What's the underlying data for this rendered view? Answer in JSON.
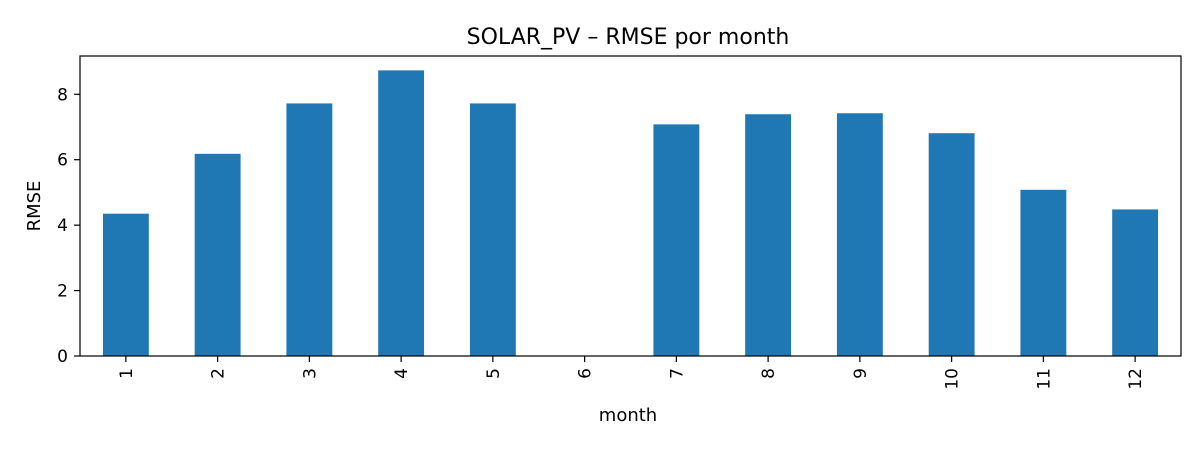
{
  "chart_data": {
    "type": "bar",
    "title": "SOLAR_PV – RMSE por month",
    "xlabel": "month",
    "ylabel": "RMSE",
    "categories": [
      "1",
      "2",
      "3",
      "4",
      "5",
      "6",
      "7",
      "8",
      "9",
      "10",
      "11",
      "12"
    ],
    "values": [
      4.35,
      6.18,
      7.72,
      8.73,
      7.72,
      0,
      7.08,
      7.39,
      7.42,
      6.81,
      5.08,
      4.48
    ],
    "ylim": [
      0,
      9.17
    ],
    "yticks": [
      0,
      2,
      4,
      6,
      8
    ],
    "grid": false,
    "legend": "none",
    "bar_color": "#1f77b4"
  }
}
